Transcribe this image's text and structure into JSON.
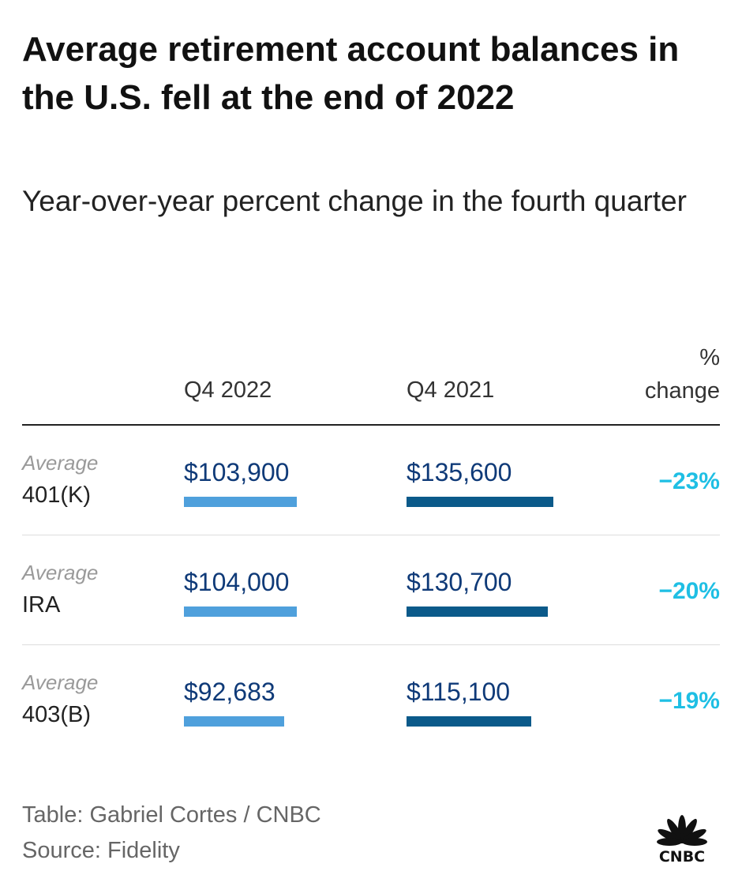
{
  "title": "Average retirement account balances in the U.S. fell at the end of 2022",
  "subtitle": "Year-over-year percent change in the fourth quarter",
  "chart_data": {
    "type": "table",
    "columns": {
      "q4_2022": "Q4 2022",
      "q4_2021": "Q4 2021",
      "pct_line1": "%",
      "pct_line2": "change"
    },
    "rows": [
      {
        "label_prefix": "Average",
        "label": "401(K)",
        "q4_2022": 103900,
        "q4_2022_text": "$103,900",
        "q4_2021": 135600,
        "q4_2021_text": "$135,600",
        "change_text": "−23%"
      },
      {
        "label_prefix": "Average",
        "label": "IRA",
        "q4_2022": 104000,
        "q4_2022_text": "$104,000",
        "q4_2021": 130700,
        "q4_2021_text": "$130,700",
        "change_text": "−20%"
      },
      {
        "label_prefix": "Average",
        "label": "403(B)",
        "q4_2022": 92683,
        "q4_2022_text": "$92,683",
        "q4_2021": 115100,
        "q4_2021_text": "$115,100",
        "change_text": "−19%"
      }
    ],
    "bar_max": 135600
  },
  "footer": {
    "credit": "Table: Gabriel Cortes / CNBC",
    "source": "Source: Fidelity"
  },
  "logo": {
    "text": "CNBC"
  },
  "colors": {
    "bar_2022": "#4fa0dc",
    "bar_2021": "#0b5a8a",
    "value_text": "#0f3a78",
    "change_text": "#1fbfe4"
  }
}
